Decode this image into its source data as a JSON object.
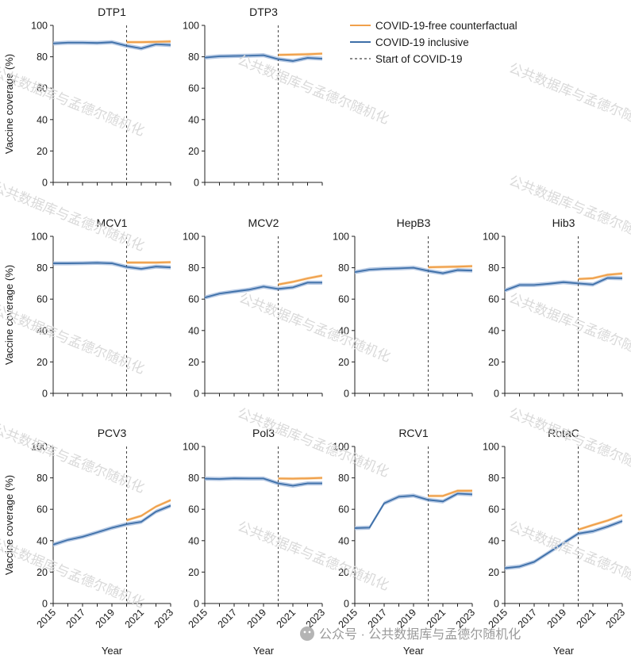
{
  "chart_data": {
    "type": "line",
    "x_axis": {
      "label": "Year",
      "ticks": [
        2015,
        2017,
        2019,
        2021,
        2023
      ],
      "range": [
        2015,
        2023
      ]
    },
    "y_axis": {
      "label": "Vaccine coverage (%)",
      "ticks": [
        0,
        20,
        40,
        60,
        80,
        100
      ],
      "range": [
        0,
        100
      ]
    },
    "covid_start_year": 2020,
    "legend": {
      "counterfactual": "COVID-19-free counterfactual",
      "inclusive": "COVID-19 inclusive",
      "start": "Start of COVID-19"
    },
    "colors": {
      "counterfactual": "#f0a04b",
      "inclusive": "#3d6fa8",
      "band": "#a9bfdf",
      "band_cf": "#f7cf9c",
      "dashed": "#444444"
    },
    "panels": [
      {
        "name": "DTP1",
        "years": [
          2015,
          2016,
          2017,
          2018,
          2019,
          2020,
          2021,
          2022,
          2023
        ],
        "inclusive": [
          88.5,
          89,
          89,
          88.8,
          89.3,
          87,
          85.3,
          88,
          87.5
        ],
        "counterfactual": {
          "years": [
            2020,
            2021,
            2022,
            2023
          ],
          "values": [
            89.3,
            89.3,
            89.5,
            89.8
          ]
        }
      },
      {
        "name": "DTP3",
        "years": [
          2015,
          2016,
          2017,
          2018,
          2019,
          2020,
          2021,
          2022,
          2023
        ],
        "inclusive": [
          79.5,
          80.3,
          80.5,
          80.7,
          81,
          78.5,
          77.3,
          79.3,
          78.8
        ],
        "counterfactual": {
          "years": [
            2020,
            2021,
            2022,
            2023
          ],
          "values": [
            81.2,
            81.4,
            81.6,
            82
          ]
        }
      },
      {
        "name": "MCV1",
        "years": [
          2015,
          2016,
          2017,
          2018,
          2019,
          2020,
          2021,
          2022,
          2023
        ],
        "inclusive": [
          82.8,
          82.8,
          82.9,
          83.1,
          82.8,
          80.5,
          79.3,
          80.7,
          80.2
        ],
        "counterfactual": {
          "years": [
            2020,
            2021,
            2022,
            2023
          ],
          "values": [
            83.3,
            83.3,
            83.3,
            83.5
          ]
        }
      },
      {
        "name": "MCV2",
        "years": [
          2015,
          2016,
          2017,
          2018,
          2019,
          2020,
          2021,
          2022,
          2023
        ],
        "inclusive": [
          61,
          63.5,
          64.8,
          66,
          68,
          66.5,
          67.5,
          70.5,
          70.5
        ],
        "counterfactual": {
          "years": [
            2020,
            2021,
            2022,
            2023
          ],
          "values": [
            69.3,
            71,
            73.2,
            75
          ]
        }
      },
      {
        "name": "HepB3",
        "years": [
          2015,
          2016,
          2017,
          2018,
          2019,
          2020,
          2021,
          2022,
          2023
        ],
        "inclusive": [
          77.2,
          78.8,
          79.3,
          79.6,
          80,
          78,
          76.5,
          78.5,
          78.2
        ],
        "counterfactual": {
          "years": [
            2020,
            2021,
            2022,
            2023
          ],
          "values": [
            80.3,
            80.5,
            80.7,
            81
          ]
        }
      },
      {
        "name": "Hib3",
        "years": [
          2015,
          2016,
          2017,
          2018,
          2019,
          2020,
          2021,
          2022,
          2023
        ],
        "inclusive": [
          65.5,
          69,
          69,
          69.8,
          70.8,
          70,
          69.3,
          73.5,
          73.3
        ],
        "counterfactual": {
          "years": [
            2020,
            2021,
            2022,
            2023
          ],
          "values": [
            72.8,
            73.3,
            75.5,
            76.3
          ]
        }
      },
      {
        "name": "PCV3",
        "years": [
          2015,
          2016,
          2017,
          2018,
          2019,
          2020,
          2021,
          2022,
          2023
        ],
        "inclusive": [
          37.5,
          40.5,
          42.5,
          45.3,
          48.2,
          50.5,
          52,
          58.5,
          62.3
        ],
        "counterfactual": {
          "years": [
            2020,
            2021,
            2022,
            2023
          ],
          "values": [
            53,
            55.8,
            61.7,
            65.8
          ]
        }
      },
      {
        "name": "Pol3",
        "years": [
          2015,
          2016,
          2017,
          2018,
          2019,
          2020,
          2021,
          2022,
          2023
        ],
        "inclusive": [
          79.5,
          79.3,
          79.7,
          79.6,
          79.6,
          76.5,
          75,
          76.5,
          76.5
        ],
        "counterfactual": {
          "years": [
            2020,
            2021,
            2022,
            2023
          ],
          "values": [
            79.6,
            79.5,
            79.7,
            80
          ]
        }
      },
      {
        "name": "RCV1",
        "years": [
          2015,
          2016,
          2017,
          2018,
          2019,
          2020,
          2021,
          2022,
          2023
        ],
        "inclusive": [
          48,
          48.3,
          63.8,
          68,
          68.7,
          66,
          65,
          70,
          69.5
        ],
        "counterfactual": {
          "years": [
            2020,
            2021,
            2022,
            2023
          ],
          "values": [
            68.5,
            68.5,
            71.8,
            71.8
          ]
        }
      },
      {
        "name": "RotaC",
        "years": [
          2015,
          2016,
          2017,
          2018,
          2019,
          2020,
          2021,
          2022,
          2023
        ],
        "inclusive": [
          22.5,
          23.5,
          26.5,
          32.5,
          38.5,
          44.5,
          46,
          49,
          52.5
        ],
        "counterfactual": {
          "years": [
            2020,
            2021,
            2022,
            2023
          ],
          "values": [
            47,
            50,
            52.8,
            56.3
          ]
        }
      }
    ]
  },
  "watermark": {
    "text": "公共数据库与孟德尔随机化",
    "footer": "公众号 · 公共数据库与孟德尔随机化"
  }
}
